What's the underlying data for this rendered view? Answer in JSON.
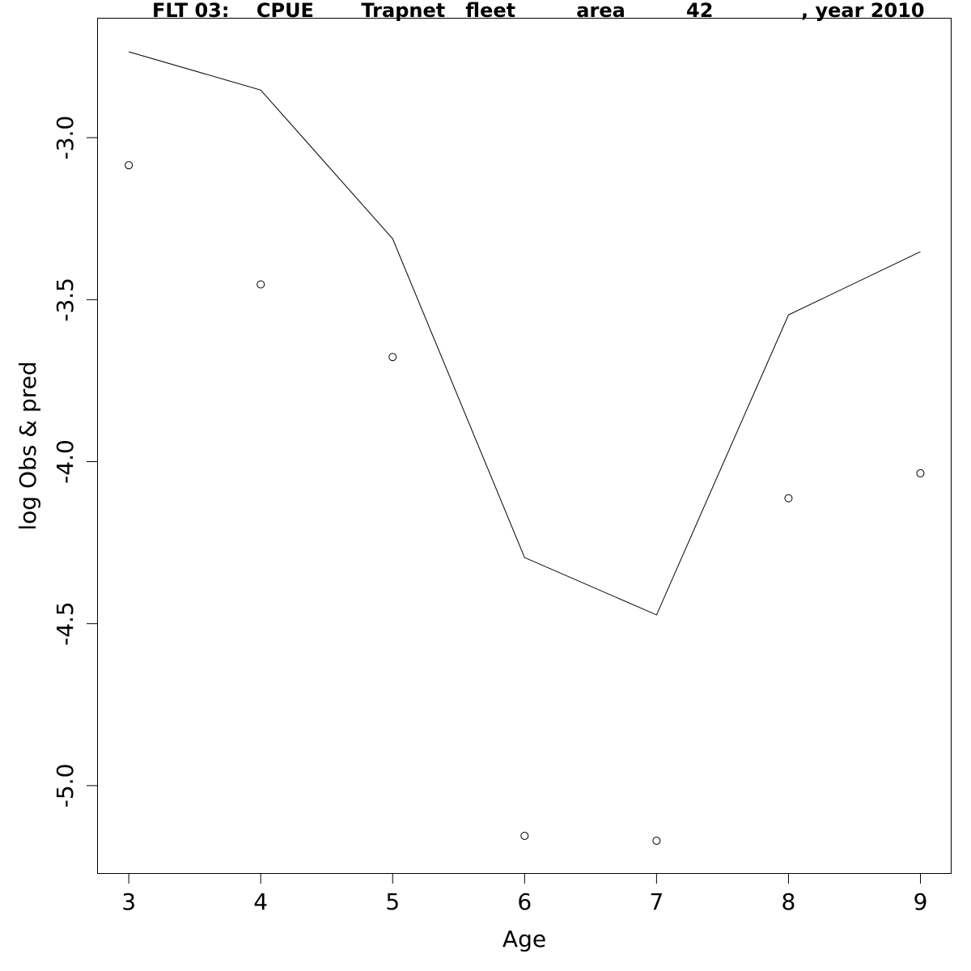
{
  "chart_data": {
    "type": "line",
    "title": "FLT 03:    CPUE       Trapnet   fleet         area         42             , year 2010",
    "xlabel": "Age",
    "ylabel": "log Obs & pred",
    "x": [
      3,
      4,
      5,
      6,
      7,
      8,
      9
    ],
    "xlim": [
      2.76,
      9.23
    ],
    "ylim": [
      -5.27,
      -2.63
    ],
    "x_ticks": [
      "3",
      "4",
      "5",
      "6",
      "7",
      "8",
      "9"
    ],
    "y_ticks": [
      "-3.0",
      "-3.5",
      "-4.0",
      "-4.5",
      "-5.0"
    ],
    "y_tick_values": [
      -3.0,
      -3.5,
      -4.0,
      -4.5,
      -5.0
    ],
    "series": [
      {
        "style": "line",
        "values": [
          -2.735,
          -2.853,
          -3.312,
          -4.296,
          -4.473,
          -3.547,
          -3.352
        ]
      },
      {
        "style": "points",
        "values": [
          -3.085,
          -3.453,
          -3.677,
          -5.155,
          -5.17,
          -4.113,
          -4.036
        ]
      }
    ],
    "grid": false,
    "legend": "none"
  }
}
